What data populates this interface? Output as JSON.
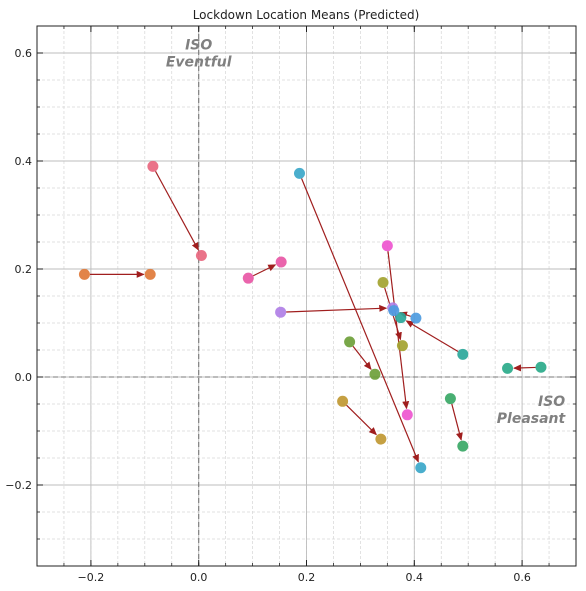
{
  "chart_data": {
    "type": "scatter",
    "title": "Lockdown Location Means (Predicted)",
    "xlabel": "",
    "ylabel": "",
    "xlim": [
      -0.3,
      0.7
    ],
    "ylim": [
      -0.35,
      0.65
    ],
    "x_ticks": [
      -0.2,
      0.0,
      0.2,
      0.4,
      0.6
    ],
    "x_tick_labels": [
      "−0.2",
      "0.0",
      "0.2",
      "0.4",
      "0.6"
    ],
    "y_ticks": [
      -0.2,
      0.0,
      0.2,
      0.4,
      0.6
    ],
    "y_tick_labels": [
      "−0.2",
      "0.0",
      "0.2",
      "0.4",
      "0.6"
    ],
    "grid": "major and minor, dashed",
    "annotations": [
      {
        "lines": [
          "ISO",
          "Eventful"
        ],
        "x": 0.0,
        "y": 0.6,
        "align": "center"
      },
      {
        "lines": [
          "ISO",
          "Pleasant"
        ],
        "x": 0.68,
        "y": -0.06,
        "align": "right"
      }
    ],
    "pairs": [
      {
        "color": "#e0793a",
        "before": [
          -0.212,
          0.19
        ],
        "after": [
          -0.09,
          0.19
        ]
      },
      {
        "color": "#e8677f",
        "before": [
          -0.085,
          0.39
        ],
        "after": [
          0.005,
          0.225
        ]
      },
      {
        "color": "#e857a5",
        "before": [
          0.092,
          0.183
        ],
        "after": [
          0.153,
          0.213
        ]
      },
      {
        "color": "#b07fe6",
        "before": [
          0.152,
          0.12
        ],
        "after": [
          0.36,
          0.128
        ]
      },
      {
        "color": "#3ba7c9",
        "before": [
          0.187,
          0.377
        ],
        "after": [
          0.412,
          -0.168
        ]
      },
      {
        "color": "#ee55cf",
        "before": [
          0.35,
          0.243
        ],
        "after": [
          0.387,
          -0.07
        ]
      },
      {
        "color": "#a3a330",
        "before": [
          0.342,
          0.175
        ],
        "after": [
          0.378,
          0.058
        ]
      },
      {
        "color": "#6ea03a",
        "before": [
          0.28,
          0.065
        ],
        "after": [
          0.327,
          0.005
        ]
      },
      {
        "color": "#c09832",
        "before": [
          0.267,
          -0.045
        ],
        "after": [
          0.338,
          -0.115
        ]
      },
      {
        "color": "#2aa79a",
        "before": [
          0.49,
          0.042
        ],
        "after": [
          0.375,
          0.11
        ]
      },
      {
        "color": "#4d9be0",
        "before": [
          0.403,
          0.109
        ],
        "after": [
          0.362,
          0.123
        ]
      },
      {
        "color": "#2aaa8a",
        "before": [
          0.635,
          0.018
        ],
        "after": [
          0.573,
          0.016
        ]
      },
      {
        "color": "#3aa866",
        "before": [
          0.467,
          -0.04
        ],
        "after": [
          0.49,
          -0.128
        ]
      }
    ]
  }
}
